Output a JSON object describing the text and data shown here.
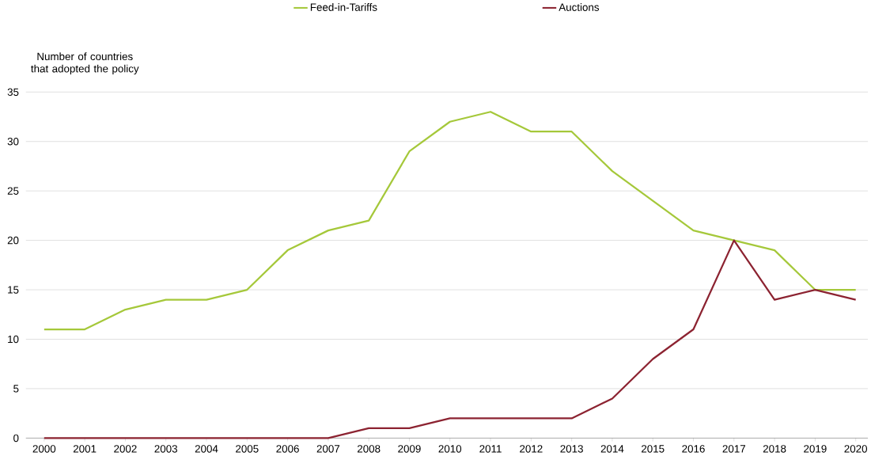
{
  "chart_data": {
    "type": "line",
    "ylabel": "Number of countries that adopted the policy",
    "categories": [
      "2000",
      "2001",
      "2002",
      "2003",
      "2004",
      "2005",
      "2006",
      "2007",
      "2008",
      "2009",
      "2010",
      "2011",
      "2012",
      "2013",
      "2014",
      "2015",
      "2016",
      "2017",
      "2018",
      "2019",
      "2020"
    ],
    "series": [
      {
        "name": "Feed-in-Tariffs",
        "color": "#a5c83a",
        "values": [
          11,
          11,
          13,
          14,
          14,
          15,
          19,
          21,
          22,
          29,
          32,
          33,
          31,
          31,
          27,
          24,
          21,
          20,
          19,
          15,
          15
        ]
      },
      {
        "name": "Auctions",
        "color": "#8c2331",
        "values": [
          0,
          0,
          0,
          0,
          0,
          0,
          0,
          0,
          1,
          1,
          2,
          2,
          2,
          2,
          4,
          8,
          11,
          20,
          14,
          15,
          14
        ]
      }
    ],
    "ylim": [
      0,
      35
    ],
    "yticks": [
      0,
      5,
      10,
      15,
      20,
      25,
      30,
      35
    ],
    "grid": "y",
    "legend": "top",
    "marker": "none",
    "line_style": "solid"
  }
}
